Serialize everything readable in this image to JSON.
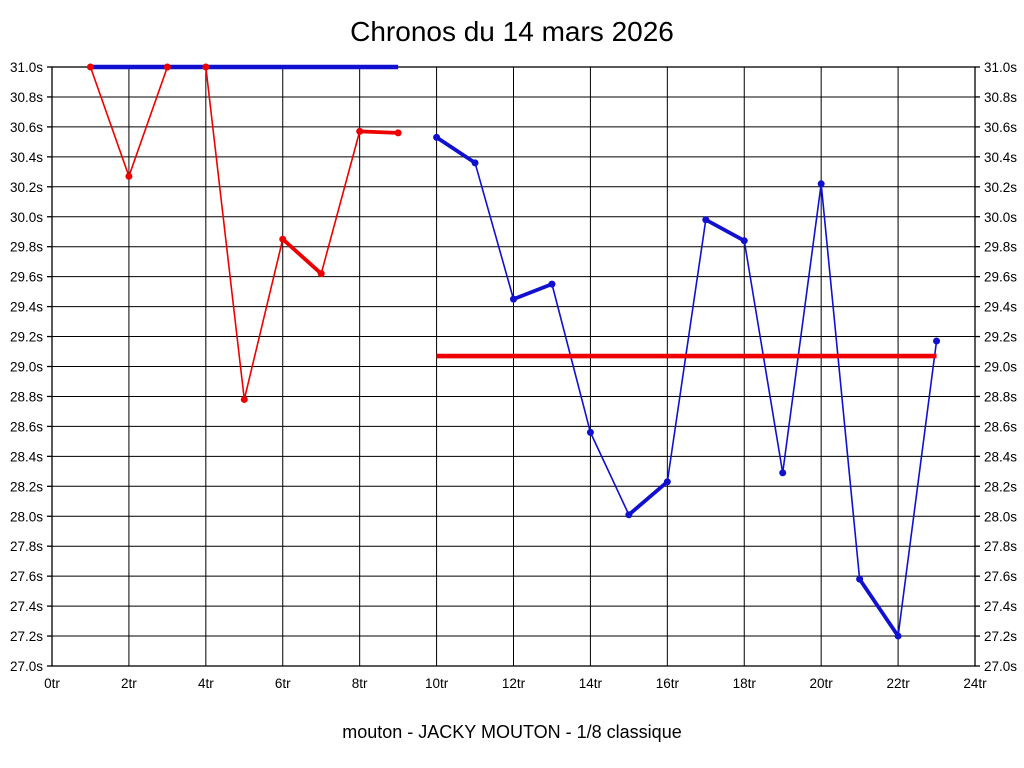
{
  "chart_data": {
    "type": "line",
    "title": "Chronos du 14 mars 2026",
    "caption": "mouton - JACKY MOUTON - 1/8 classique",
    "x_axis": {
      "unit": "tr",
      "min": 0,
      "max": 24,
      "tick_step": 2,
      "tick_labels": [
        "0tr",
        "2tr",
        "4tr",
        "6tr",
        "8tr",
        "10tr",
        "12tr",
        "14tr",
        "16tr",
        "18tr",
        "20tr",
        "22tr",
        "24tr"
      ]
    },
    "y_axis": {
      "unit": "s",
      "min": 27.0,
      "max": 31.0,
      "tick_step": 0.2,
      "labels_on_both_sides": true,
      "tick_labels": [
        "31.0s",
        "30.8s",
        "30.6s",
        "30.4s",
        "30.2s",
        "30.0s",
        "29.8s",
        "29.6s",
        "29.4s",
        "29.2s",
        "29.0s",
        "28.8s",
        "28.6s",
        "28.4s",
        "28.2s",
        "28.0s",
        "27.8s",
        "27.6s",
        "27.4s",
        "27.2s",
        "27.0s"
      ]
    },
    "grid": {
      "horizontal_step": 0.2,
      "vertical_step": 2,
      "color": "#000000"
    },
    "series": [
      {
        "name": "serie-rouge-tours-1-9",
        "color": "#ee0000",
        "x": [
          1,
          2,
          3,
          4,
          5,
          6,
          7,
          8,
          9
        ],
        "values": [
          31.0,
          30.27,
          31.0,
          31.0,
          28.78,
          29.85,
          29.62,
          30.57,
          30.56
        ]
      },
      {
        "name": "serie-bleue-tours-10-23",
        "color": "#1010d0",
        "x": [
          10,
          11,
          12,
          13,
          14,
          15,
          16,
          17,
          18,
          19,
          20,
          21,
          22,
          23
        ],
        "values": [
          30.53,
          30.36,
          29.45,
          29.55,
          28.56,
          28.01,
          28.23,
          29.98,
          29.84,
          28.29,
          30.22,
          27.58,
          27.2,
          29.17
        ]
      }
    ],
    "reference_lines": [
      {
        "name": "ligne-reference-bleue",
        "color": "#1010d0",
        "value": 31.0,
        "x_start": 1,
        "x_end": 9
      },
      {
        "name": "ligne-reference-rouge",
        "color": "#ee0000",
        "value": 29.07,
        "x_start": 10,
        "x_end": 23
      }
    ]
  }
}
